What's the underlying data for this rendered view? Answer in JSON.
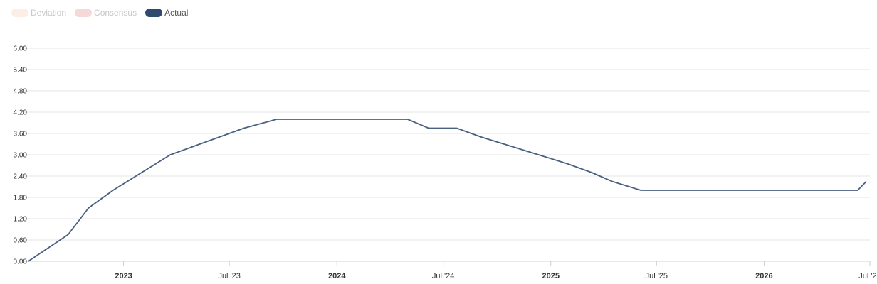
{
  "legend": {
    "items": [
      {
        "label": "Deviation",
        "color": "#fbeee6",
        "active": false
      },
      {
        "label": "Consensus",
        "color": "#f6d8d8",
        "active": false
      },
      {
        "label": "Actual",
        "color": "#2e4a6e",
        "active": true
      }
    ]
  },
  "chart_data": {
    "type": "line",
    "title": "",
    "xlabel": "",
    "ylabel": "",
    "ylim": [
      0,
      6
    ],
    "yticks": [
      "0.00",
      "0.60",
      "1.20",
      "1.80",
      "2.40",
      "3.00",
      "3.60",
      "4.20",
      "4.80",
      "5.40",
      "6.00"
    ],
    "xlim": [
      "2022-07-15",
      "2026-07-01"
    ],
    "xticks": [
      {
        "label": "2023",
        "date": "2023-01-01",
        "major": true
      },
      {
        "label": "Jul '23",
        "date": "2023-07-01",
        "major": false
      },
      {
        "label": "2024",
        "date": "2024-01-01",
        "major": true
      },
      {
        "label": "Jul '24",
        "date": "2024-07-01",
        "major": false
      },
      {
        "label": "2025",
        "date": "2025-01-01",
        "major": true
      },
      {
        "label": "Jul '25",
        "date": "2025-07-01",
        "major": false
      },
      {
        "label": "2026",
        "date": "2026-01-01",
        "major": true
      },
      {
        "label": "Jul '26",
        "date": "2026-07-01",
        "major": false
      }
    ],
    "grid": true,
    "legend_position": "top-left",
    "series": [
      {
        "name": "Actual",
        "color": "#4a6080",
        "x": [
          "2022-07-22",
          "2022-09-28",
          "2022-11-02",
          "2022-12-14",
          "2023-02-01",
          "2023-03-22",
          "2023-05-03",
          "2023-06-14",
          "2023-07-26",
          "2023-09-20",
          "2023-11-01",
          "2023-12-13",
          "2024-01-31",
          "2024-03-20",
          "2024-05-01",
          "2024-06-06",
          "2024-07-24",
          "2024-09-04",
          "2024-10-23",
          "2024-12-11",
          "2025-01-29",
          "2025-03-12",
          "2025-04-16",
          "2025-06-04",
          "2025-07-30",
          "2025-09-17",
          "2025-10-29",
          "2025-12-10",
          "2026-01-28",
          "2026-03-18",
          "2026-04-29",
          "2026-06-10",
          "2026-06-25"
        ],
        "values": [
          0.0,
          0.75,
          1.5,
          2.0,
          2.5,
          3.0,
          3.25,
          3.5,
          3.75,
          4.0,
          4.0,
          4.0,
          4.0,
          4.0,
          4.0,
          3.75,
          3.75,
          3.5,
          3.25,
          3.0,
          2.75,
          2.5,
          2.25,
          2.0,
          2.0,
          2.0,
          2.0,
          2.0,
          2.0,
          2.0,
          2.0,
          2.0,
          2.25
        ]
      }
    ]
  }
}
